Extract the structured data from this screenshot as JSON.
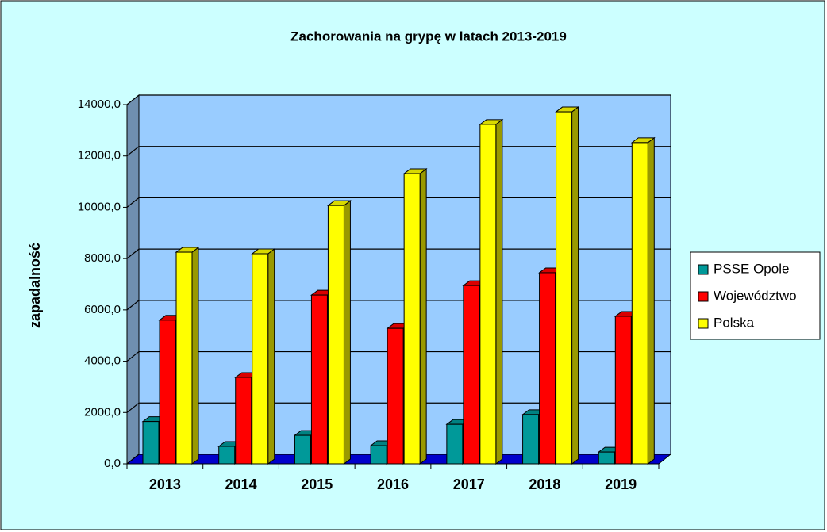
{
  "chart_data": {
    "type": "bar3d",
    "title": "Zachorowania na grypę w latach 2013-2019",
    "y_label": "zapadalność",
    "categories": [
      "2013",
      "2014",
      "2015",
      "2016",
      "2017",
      "2018",
      "2019"
    ],
    "series": [
      {
        "name": "PSSE Opole",
        "color": "#009999",
        "values": [
          1650,
          680,
          1110,
          710,
          1540,
          1920,
          460
        ]
      },
      {
        "name": "Województwo",
        "color": "#ff0000",
        "values": [
          5600,
          3370,
          6580,
          5280,
          6950,
          7450,
          5750
        ]
      },
      {
        "name": "Polska",
        "color": "#ffff00",
        "values": [
          8250,
          8190,
          10070,
          11310,
          13230,
          13720,
          12520
        ]
      }
    ],
    "ylim": [
      0,
      14000
    ],
    "yticks": [
      {
        "value": 0,
        "label": "0,0"
      },
      {
        "value": 2000,
        "label": "2000,0"
      },
      {
        "value": 4000,
        "label": "4000,0"
      },
      {
        "value": 6000,
        "label": "6000,0"
      },
      {
        "value": 8000,
        "label": "8000,0"
      },
      {
        "value": 10000,
        "label": "10000,0"
      },
      {
        "value": 12000,
        "label": "12000,0"
      },
      {
        "value": 14000,
        "label": "14000,0"
      }
    ],
    "grid": true,
    "legend": "right"
  }
}
